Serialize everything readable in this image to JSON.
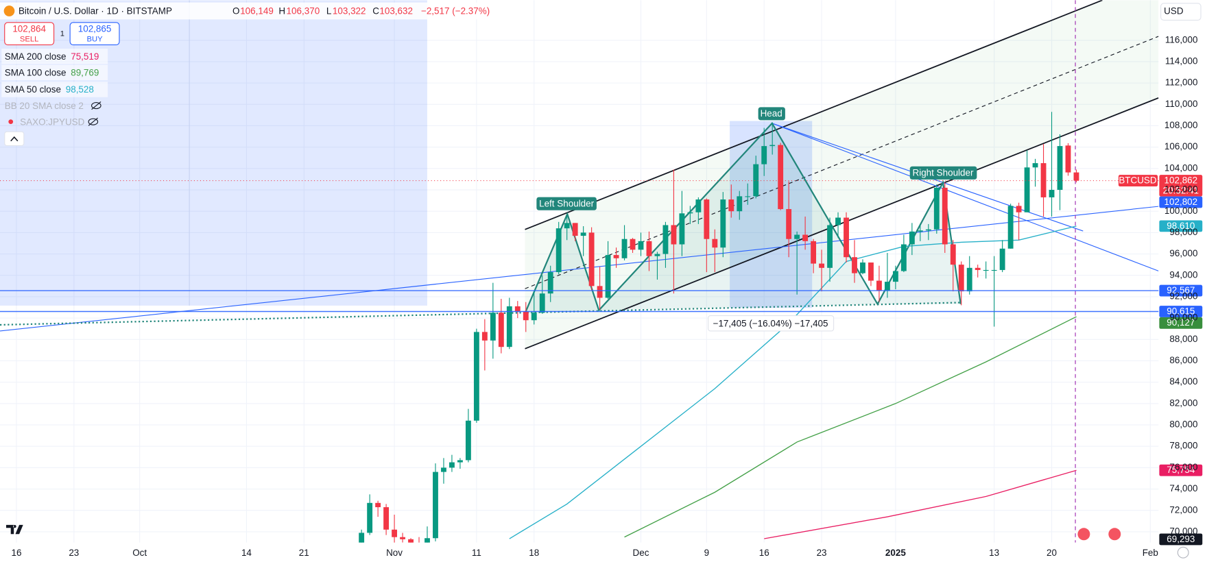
{
  "chart_data": {
    "type": "candlestick",
    "title": "Bitcoin / U.S. Dollar · 1D · BITSTAMP",
    "header": {
      "open_key": "O",
      "open": "106,149",
      "high_key": "H",
      "high": "106,370",
      "low_key": "L",
      "low": "103,322",
      "close_key": "C",
      "close": "103,632",
      "change": "−2,517 (−2.37%)"
    },
    "up_color": "#089981",
    "down_color": "#f23645",
    "x": [
      "2024-10-28",
      "2024-10-29",
      "2024-10-30",
      "2024-10-31",
      "2024-11-01",
      "2024-11-02",
      "2024-11-03",
      "2024-11-04",
      "2024-11-05",
      "2024-11-06",
      "2024-11-07",
      "2024-11-08",
      "2024-11-09",
      "2024-11-10",
      "2024-11-11",
      "2024-11-12",
      "2024-11-13",
      "2024-11-14",
      "2024-11-15",
      "2024-11-16",
      "2024-11-17",
      "2024-11-18",
      "2024-11-19",
      "2024-11-20",
      "2024-11-21",
      "2024-11-22",
      "2024-11-23",
      "2024-11-24",
      "2024-11-25",
      "2024-11-26",
      "2024-11-27",
      "2024-11-28",
      "2024-11-29",
      "2024-11-30",
      "2024-12-01",
      "2024-12-02",
      "2024-12-03",
      "2024-12-04",
      "2024-12-05",
      "2024-12-06",
      "2024-12-07",
      "2024-12-08",
      "2024-12-09",
      "2024-12-10",
      "2024-12-11",
      "2024-12-12",
      "2024-12-13",
      "2024-12-14",
      "2024-12-15",
      "2024-12-16",
      "2024-12-17",
      "2024-12-18",
      "2024-12-19",
      "2024-12-20",
      "2024-12-21",
      "2024-12-22",
      "2024-12-23",
      "2024-12-24",
      "2024-12-25",
      "2024-12-26",
      "2024-12-27",
      "2024-12-28",
      "2024-12-29",
      "2024-12-30",
      "2024-12-31",
      "2025-01-01",
      "2025-01-02",
      "2025-01-03",
      "2025-01-04",
      "2025-01-05",
      "2025-01-06",
      "2025-01-07",
      "2025-01-08",
      "2025-01-09",
      "2025-01-10",
      "2025-01-11",
      "2025-01-12",
      "2025-01-13",
      "2025-01-14",
      "2025-01-15",
      "2025-01-16",
      "2025-01-17",
      "2025-01-18",
      "2025-01-19",
      "2025-01-20",
      "2025-01-21",
      "2025-01-22",
      "2025-01-23"
    ],
    "open": [
      67900,
      69900,
      72700,
      72300,
      70200,
      69500,
      69300,
      68700,
      67800,
      69400,
      75600,
      76000,
      76500,
      76700,
      80400,
      88700,
      87900,
      90500,
      87300,
      91100,
      90600,
      89800,
      90500,
      92300,
      94300,
      98400,
      98900,
      97700,
      98000,
      93000,
      91900,
      95900,
      95600,
      97400,
      96400,
      97200,
      95800,
      96000,
      98700,
      96900,
      99800,
      99900,
      101100,
      97400,
      96600,
      101100,
      100000,
      101400,
      101400,
      104400,
      106100,
      106200,
      100200,
      97400,
      97800,
      97200,
      95100,
      94700,
      98700,
      99400,
      95700,
      94200,
      95200,
      93500,
      92600,
      93400,
      94400,
      96900,
      98100,
      98200,
      98300,
      102200,
      96900,
      95000,
      92500,
      94700,
      94500,
      94500,
      94500,
      96500,
      100500,
      99900,
      104100,
      104500,
      101300,
      102000,
      106149,
      103632
    ],
    "high": [
      70200,
      73500,
      72900,
      72600,
      71600,
      69900,
      69400,
      69500,
      70500,
      76400,
      76900,
      77200,
      76900,
      81500,
      89000,
      89900,
      93300,
      91800,
      91900,
      91600,
      91500,
      92600,
      94000,
      94900,
      99000,
      99600,
      98900,
      98600,
      98500,
      94800,
      97200,
      96600,
      98700,
      97500,
      98000,
      98100,
      96200,
      99000,
      103900,
      101900,
      100500,
      101300,
      101200,
      98300,
      101800,
      102500,
      101900,
      102600,
      105200,
      107800,
      108300,
      106400,
      102800,
      98100,
      99500,
      97400,
      96400,
      99400,
      99900,
      99900,
      97300,
      95500,
      95200,
      94900,
      96100,
      94900,
      97800,
      98900,
      98800,
      98800,
      102500,
      102700,
      97300,
      95300,
      95800,
      95000,
      95300,
      95800,
      97300,
      100700,
      100800,
      105700,
      104900,
      106300,
      109300,
      107200,
      106370,
      103900
    ],
    "low": [
      67600,
      69700,
      71400,
      69700,
      68800,
      69000,
      67500,
      66800,
      67500,
      69100,
      74500,
      75600,
      75900,
      76500,
      80200,
      85100,
      86200,
      86700,
      87100,
      90000,
      88700,
      89400,
      90400,
      91500,
      94100,
      97300,
      97200,
      95800,
      92600,
      90800,
      91800,
      94700,
      95400,
      96100,
      95800,
      94400,
      93600,
      94700,
      92300,
      95800,
      98800,
      98800,
      94300,
      94300,
      95700,
      99400,
      99200,
      100600,
      101200,
      103300,
      105300,
      100100,
      95700,
      92200,
      96400,
      94200,
      92500,
      93400,
      97500,
      95200,
      93300,
      94100,
      93000,
      91500,
      91900,
      92700,
      94300,
      95900,
      97200,
      97300,
      97900,
      96100,
      92500,
      91200,
      92200,
      93800,
      93700,
      89200,
      94300,
      96500,
      97300,
      99900,
      102300,
      99500,
      99500,
      100100,
      103322,
      102700
    ],
    "close": [
      69900,
      72700,
      72300,
      70200,
      69500,
      69300,
      68700,
      67800,
      69400,
      75600,
      76000,
      76500,
      76700,
      80400,
      88700,
      87900,
      90500,
      87300,
      91100,
      90600,
      89800,
      90500,
      92300,
      94300,
      98400,
      98900,
      97700,
      98000,
      93000,
      91900,
      95900,
      95600,
      97400,
      96400,
      97200,
      95800,
      96000,
      98700,
      96900,
      99800,
      99900,
      101100,
      97400,
      96600,
      101100,
      100000,
      101400,
      101400,
      104400,
      106100,
      106200,
      100200,
      97400,
      97800,
      97200,
      95100,
      94700,
      98700,
      99400,
      95700,
      94200,
      95200,
      93500,
      92600,
      93400,
      94400,
      96900,
      98100,
      98200,
      98300,
      102200,
      96900,
      95000,
      92500,
      94700,
      94500,
      94500,
      94500,
      96500,
      100500,
      99900,
      104100,
      104500,
      101300,
      102000,
      106100,
      103632,
      102862
    ],
    "xlim": [
      "2024-09-14",
      "2025-02-02"
    ],
    "ylim": [
      68990,
      119750
    ],
    "grid": true,
    "xticks": [
      {
        "value": "2024-09-16",
        "label": "16"
      },
      {
        "value": "2024-09-23",
        "label": "23"
      },
      {
        "value": "2024-10-01",
        "label": "Oct"
      },
      {
        "value": "2024-10-14",
        "label": "14"
      },
      {
        "value": "2024-10-21",
        "label": "21"
      },
      {
        "value": "2024-11-01",
        "label": "Nov"
      },
      {
        "value": "2024-11-11",
        "label": "11"
      },
      {
        "value": "2024-11-18",
        "label": "18"
      },
      {
        "value": "2024-12-01",
        "label": "Dec"
      },
      {
        "value": "2024-12-09",
        "label": "9"
      },
      {
        "value": "2024-12-16",
        "label": "16"
      },
      {
        "value": "2024-12-23",
        "label": "23"
      },
      {
        "value": "2025-01-01",
        "label": "2025"
      },
      {
        "value": "2025-01-13",
        "label": "13"
      },
      {
        "value": "2025-01-20",
        "label": "20"
      },
      {
        "value": "2025-02-01",
        "label": "Feb"
      }
    ],
    "yticks": [
      {
        "value": 70000,
        "label": "70,000"
      },
      {
        "value": 72000,
        "label": "72,000"
      },
      {
        "value": 74000,
        "label": "74,000"
      },
      {
        "value": 76000,
        "label": "76,000"
      },
      {
        "value": 78000,
        "label": "78,000"
      },
      {
        "value": 80000,
        "label": "80,000"
      },
      {
        "value": 82000,
        "label": "82,000"
      },
      {
        "value": 84000,
        "label": "84,000"
      },
      {
        "value": 86000,
        "label": "86,000"
      },
      {
        "value": 88000,
        "label": "88,000"
      },
      {
        "value": 90000,
        "label": "90,000"
      },
      {
        "value": 92000,
        "label": "92,000"
      },
      {
        "value": 94000,
        "label": "94,000"
      },
      {
        "value": 96000,
        "label": "96,000"
      },
      {
        "value": 98000,
        "label": "98,000"
      },
      {
        "value": 100000,
        "label": "100,000"
      },
      {
        "value": 102000,
        "label": "102,000"
      },
      {
        "value": 104000,
        "label": "104,000"
      },
      {
        "value": 106000,
        "label": "106,000"
      },
      {
        "value": 108000,
        "label": "108,000"
      },
      {
        "value": 110000,
        "label": "110,000"
      },
      {
        "value": 112000,
        "label": "112,000"
      },
      {
        "value": 114000,
        "label": "114,000"
      },
      {
        "value": 116000,
        "label": "116,000"
      }
    ],
    "series": [
      {
        "name": "SMA 200 close",
        "legend_label": "75,519",
        "color": "#e91e63",
        "x": [
          "2024-12-16",
          "2024-12-31",
          "2025-01-12",
          "2025-01-23"
        ],
        "values": [
          69350,
          71400,
          73300,
          75754
        ]
      },
      {
        "name": "SMA 100 close",
        "legend_label": "89,769",
        "color": "#43a047",
        "x": [
          "2024-11-29",
          "2024-12-10",
          "2024-12-20",
          "2025-01-01",
          "2025-01-12",
          "2025-01-23"
        ],
        "values": [
          69500,
          73700,
          78400,
          82000,
          85900,
          90127
        ]
      },
      {
        "name": "SMA 50 close",
        "legend_label": "98,528",
        "color": "#26b0c8",
        "x": [
          "2024-11-15",
          "2024-11-22",
          "2024-12-01",
          "2024-12-10",
          "2024-12-19",
          "2024-12-26",
          "2025-01-02",
          "2025-01-09",
          "2025-01-16",
          "2025-01-23"
        ],
        "values": [
          69350,
          72600,
          78000,
          83400,
          89500,
          95300,
          96700,
          97100,
          97300,
          98610
        ]
      }
    ],
    "price_labels": [
      {
        "value": 102862,
        "label": "102,862",
        "color": "#f23645",
        "symbol": "BTCUSD",
        "countdown": "20:52:41",
        "line": "dotted"
      },
      {
        "value": 102802,
        "label": "102,802",
        "color": "#2962ff"
      },
      {
        "value": 98610,
        "label": "98,610",
        "color": "#26b0c8"
      },
      {
        "value": 92567,
        "label": "92,567",
        "color": "#2962ff",
        "line": "solid"
      },
      {
        "value": 90615,
        "label": "90,615",
        "color": "#2962ff",
        "line": "solid"
      },
      {
        "value": 90127,
        "label": "90,127",
        "color": "#388e3c"
      },
      {
        "value": 75754,
        "label": "75,754",
        "color": "#e91e63"
      },
      {
        "value": 69293,
        "label": "69,293",
        "color": "#131722"
      }
    ]
  },
  "trade": {
    "sell_price": "102,864",
    "sell": "SELL",
    "quantity": "1",
    "buy_price": "102,865",
    "buy": "BUY"
  },
  "hidden_indicators": [
    "BB 20 SMA close 2",
    "SAXO:JPYUSD"
  ],
  "annotations": {
    "left_shoulder": "Left Shoulder",
    "head": "Head",
    "right_shoulder": "Right Shoulder",
    "measure": "−17,405 (−16.04%) −17,405"
  },
  "currency": "USD"
}
